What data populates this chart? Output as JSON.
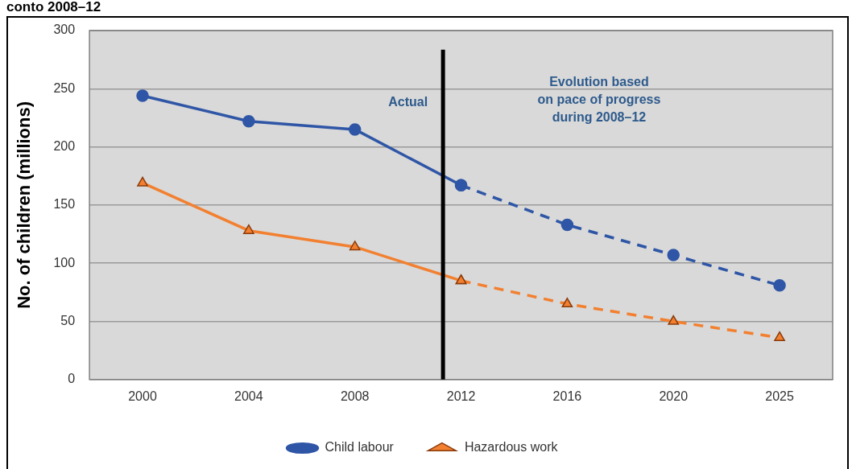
{
  "chart_data": {
    "type": "line",
    "title": "conto 2008–12",
    "ylabel": "No. of children (millions)",
    "categories": [
      "2000",
      "2004",
      "2008",
      "2012",
      "2016",
      "2020",
      "2025"
    ],
    "series": [
      {
        "name": "Child labour",
        "color": "#2f56a6",
        "marker": "circle",
        "line_style": "solid",
        "values": [
          244,
          222,
          215,
          167,
          null,
          null,
          null
        ]
      },
      {
        "name": "Hazardous work",
        "color": "#f28030",
        "marker": "triangle",
        "line_style": "solid",
        "values": [
          169,
          128,
          114,
          85,
          null,
          null,
          null
        ]
      },
      {
        "color": "#2f56a6",
        "marker": "circle",
        "line_style": "dashed",
        "values": [
          null,
          null,
          null,
          167,
          133,
          107,
          81
        ]
      },
      {
        "color": "#f28030",
        "marker": "triangle",
        "line_style": "dashed",
        "values": [
          null,
          null,
          null,
          85,
          65,
          50,
          36
        ]
      }
    ],
    "ylim": [
      0,
      300
    ],
    "yticks": [
      0,
      50,
      100,
      150,
      200,
      250,
      300
    ],
    "grid": "y",
    "legend": "bottom",
    "ref_lines": [
      {
        "axis": "x",
        "value": "2012",
        "color": "#000000"
      }
    ],
    "annotations": [
      "Actual",
      "Evolution based\non pace of progress\nduring 2008–12"
    ]
  }
}
